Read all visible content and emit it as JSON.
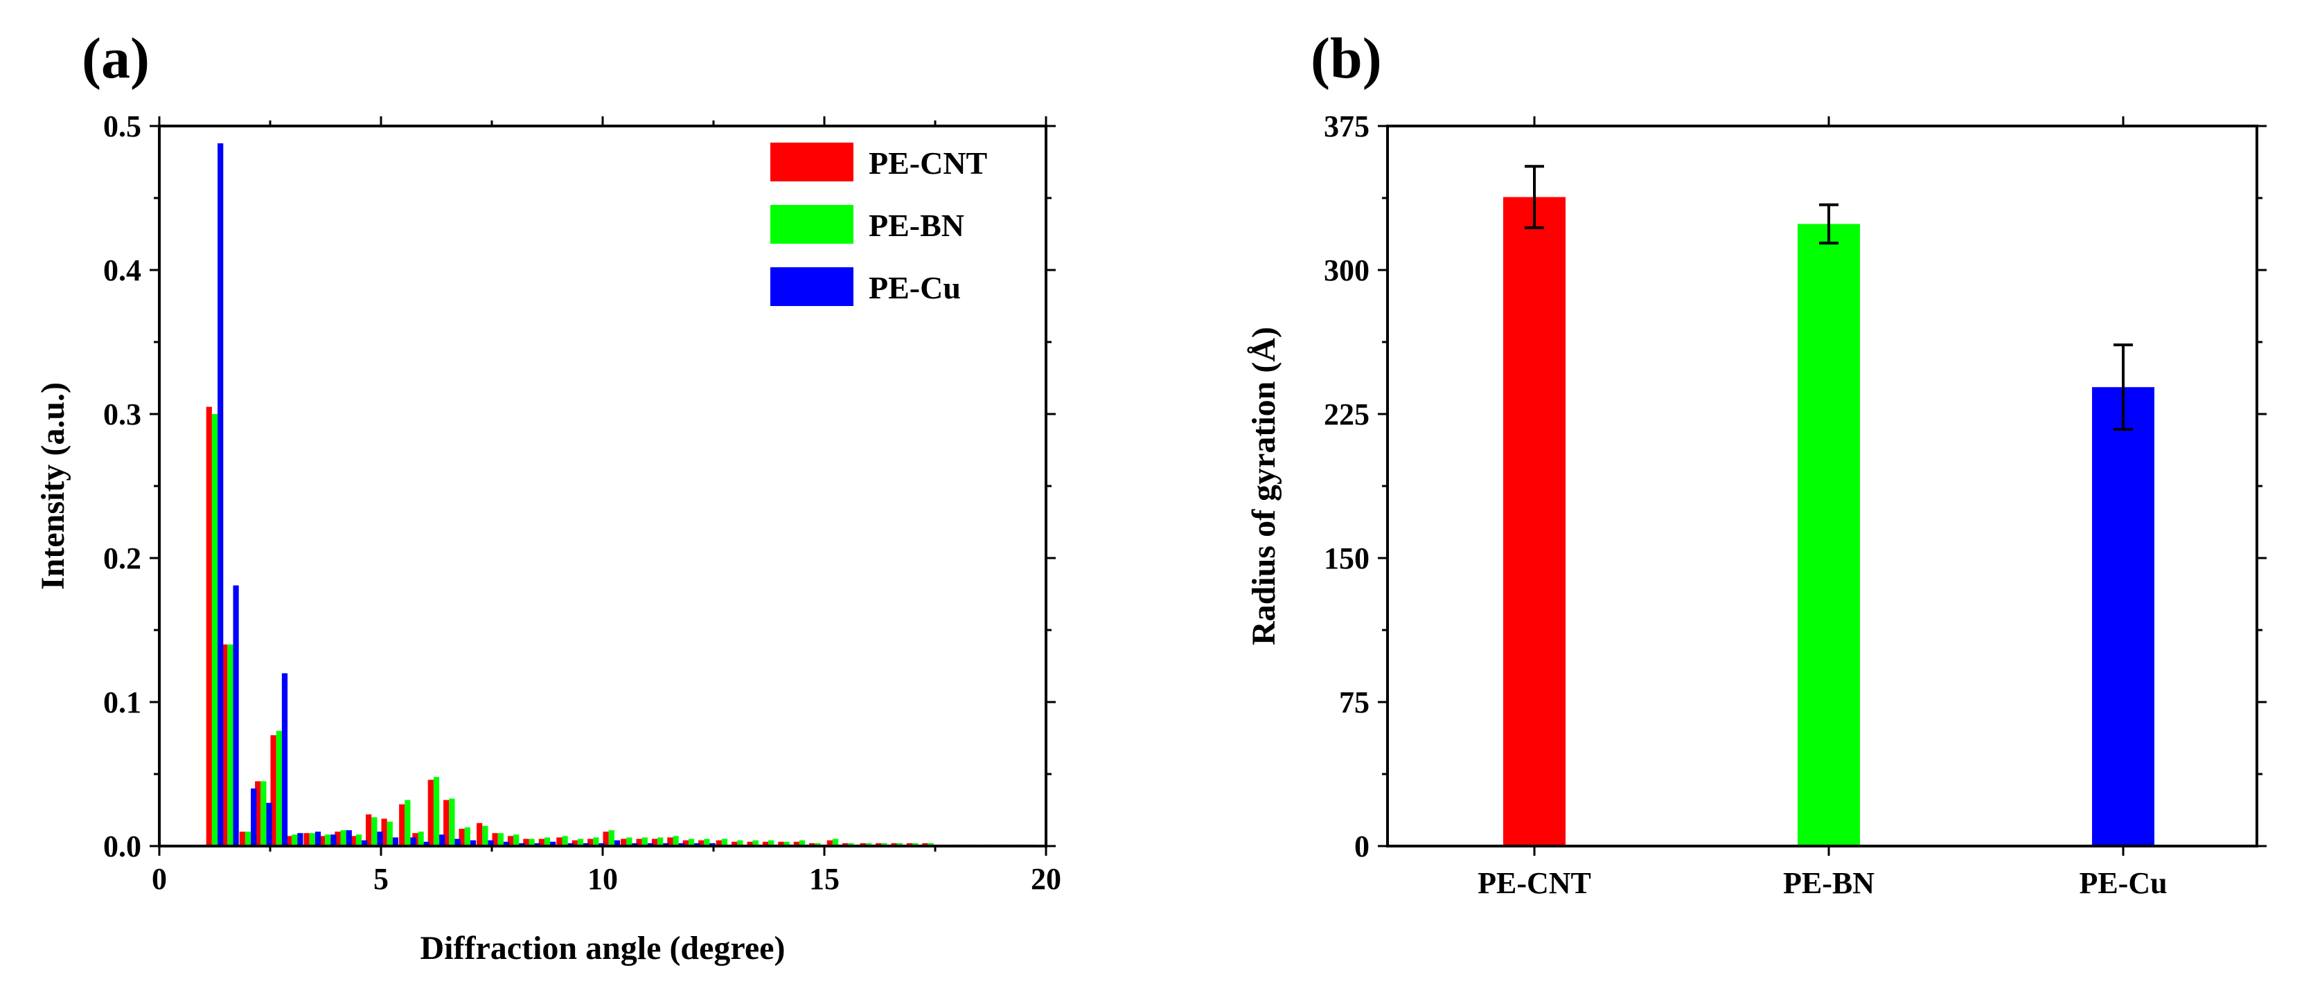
{
  "figure": {
    "panel_a_label": "(a)",
    "panel_b_label": "(b)"
  },
  "chart_data": [
    {
      "type": "bar",
      "panel": "(a)",
      "title": "",
      "xlabel": "Diffraction angle (degree)",
      "ylabel": "Intensity (a.u.)",
      "xlim": [
        0,
        20
      ],
      "ylim": [
        0,
        0.5
      ],
      "xticks": [
        0,
        5,
        10,
        15,
        20
      ],
      "xtick_labels": [
        "0",
        "5",
        "10",
        "15",
        "20"
      ],
      "yticks": [
        0.0,
        0.1,
        0.2,
        0.3,
        0.4,
        0.5
      ],
      "ytick_labels": [
        "0.0",
        "0.1",
        "0.2",
        "0.3",
        "0.4",
        "0.5"
      ],
      "legend_position": "top-right",
      "x": [
        1.25,
        1.6,
        2.0,
        2.35,
        2.7,
        3.05,
        3.45,
        3.8,
        4.15,
        4.5,
        4.85,
        5.2,
        5.6,
        5.9,
        6.25,
        6.6,
        6.95,
        7.35,
        7.7,
        8.05,
        8.4,
        8.75,
        9.15,
        9.5,
        9.85,
        10.2,
        10.6,
        10.95,
        11.3,
        11.65,
        12.0,
        12.35,
        12.75,
        13.1,
        13.45,
        13.8,
        14.15,
        14.5,
        14.85,
        15.25,
        15.6,
        16.0,
        16.35,
        16.7,
        17.05,
        17.4,
        17.8,
        18.15,
        18.5,
        18.85,
        19.2,
        19.55
      ],
      "series": [
        {
          "name": "PE-CNT",
          "color": "#ff0000",
          "values": [
            0.305,
            0.14,
            0.01,
            0.045,
            0.077,
            0.007,
            0.009,
            0.007,
            0.01,
            0.007,
            0.022,
            0.019,
            0.029,
            0.009,
            0.046,
            0.032,
            0.012,
            0.016,
            0.009,
            0.007,
            0.005,
            0.005,
            0.006,
            0.004,
            0.005,
            0.01,
            0.005,
            0.005,
            0.005,
            0.006,
            0.004,
            0.004,
            0.004,
            0.003,
            0.003,
            0.003,
            0.003,
            0.003,
            0.002,
            0.004,
            0.002,
            0.002,
            0.002,
            0.002,
            0.002,
            0.002,
            0.001,
            0.001,
            0.001,
            0.001,
            0.001,
            0.001
          ]
        },
        {
          "name": "PE-BN",
          "color": "#00ff00",
          "values": [
            0.3,
            0.14,
            0.01,
            0.045,
            0.08,
            0.008,
            0.009,
            0.008,
            0.011,
            0.008,
            0.02,
            0.017,
            0.032,
            0.01,
            0.048,
            0.033,
            0.013,
            0.014,
            0.009,
            0.008,
            0.005,
            0.006,
            0.007,
            0.005,
            0.006,
            0.011,
            0.006,
            0.006,
            0.006,
            0.007,
            0.005,
            0.005,
            0.005,
            0.004,
            0.004,
            0.004,
            0.003,
            0.004,
            0.002,
            0.005,
            0.002,
            0.002,
            0.002,
            0.002,
            0.002,
            0.002,
            0.001,
            0.001,
            0.001,
            0.001,
            0.001,
            0.001
          ]
        },
        {
          "name": "PE-Cu",
          "color": "#0000ff",
          "values": [
            0.488,
            0.181,
            0.04,
            0.03,
            0.12,
            0.009,
            0.01,
            0.008,
            0.011,
            0.004,
            0.01,
            0.006,
            0.006,
            0.003,
            0.008,
            0.005,
            0.004,
            0.004,
            0.003,
            0.002,
            0.002,
            0.003,
            0.002,
            0.002,
            0.002,
            0.004,
            0.002,
            0.002,
            0.002,
            0.002,
            0.002,
            0.002,
            0.001,
            0.001,
            0.001,
            0.001,
            0.001,
            0.001,
            0.001,
            0.001,
            0.001,
            0.001,
            0.001,
            0.001,
            0.001,
            0.001,
            0.001,
            0.001,
            0.001,
            0.001,
            0.001,
            0.001
          ]
        }
      ]
    },
    {
      "type": "bar",
      "panel": "(b)",
      "title": "",
      "xlabel": "",
      "ylabel": "Radius of gyration (Å)",
      "ylim": [
        0,
        375
      ],
      "yticks": [
        0,
        75,
        150,
        225,
        300,
        375
      ],
      "ytick_labels": [
        "0",
        "75",
        "150",
        "225",
        "300",
        "375"
      ],
      "categories": [
        "PE-CNT",
        "PE-BN",
        "PE-Cu"
      ],
      "values": [
        338,
        324,
        239
      ],
      "errors": [
        16,
        10,
        22
      ],
      "colors": [
        "#ff0000",
        "#00ff00",
        "#0000ff"
      ]
    }
  ]
}
